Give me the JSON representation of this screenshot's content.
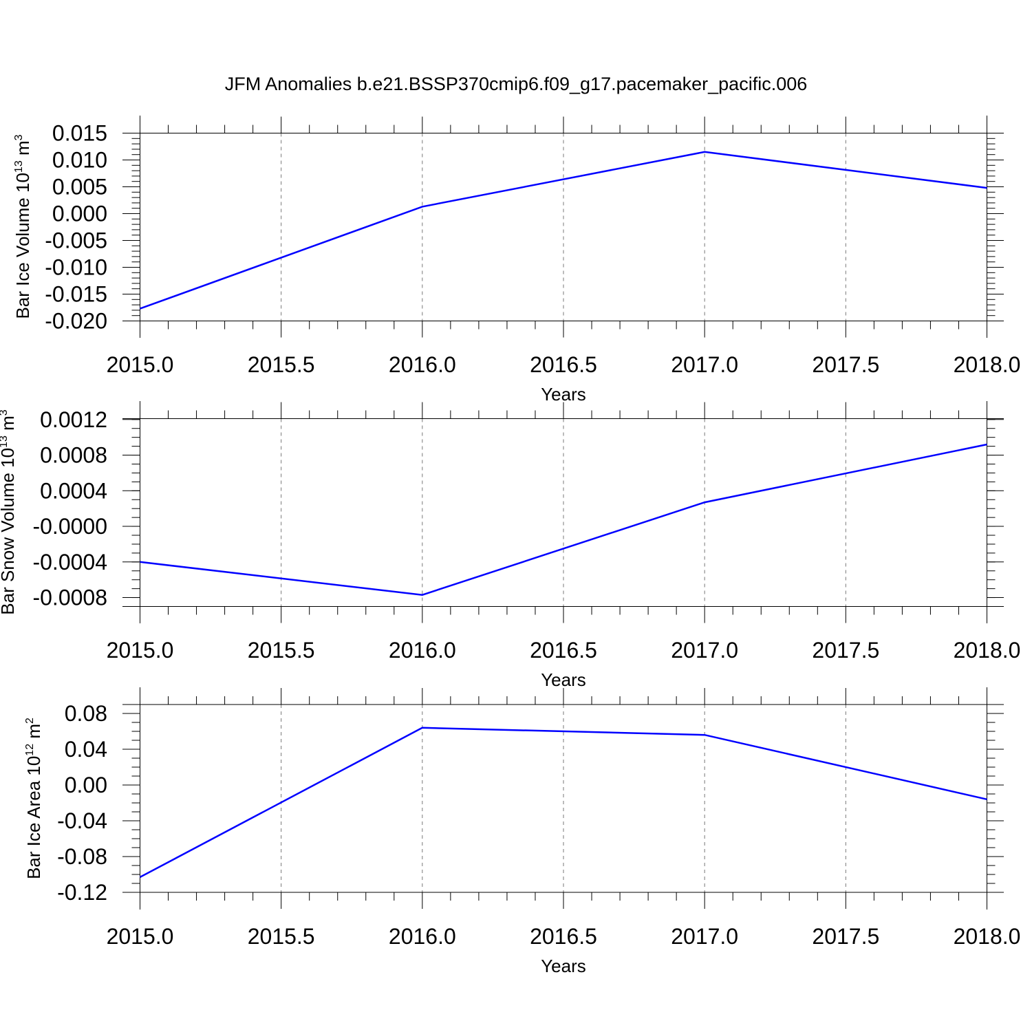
{
  "title": "JFM Anomalies b.e21.BSSP370cmip6.f09_g17.pacemaker_pacific.006",
  "colors": {
    "series": "#0000ff",
    "grid": "#777777",
    "frame": "#000000"
  },
  "chart_data": [
    {
      "type": "line",
      "xlabel": "Years",
      "ylabel": "Bar Ice Volume 10",
      "ylabel_sup": "13",
      "ylabel_unit": " m",
      "ylabel_unit_sup": "3",
      "xlim": [
        2015.0,
        2018.0
      ],
      "ylim": [
        -0.02,
        0.015
      ],
      "x_ticks": [
        "2015.0",
        "2015.5",
        "2016.0",
        "2016.5",
        "2017.0",
        "2017.5",
        "2018.0"
      ],
      "x_tick_values": [
        2015.0,
        2015.5,
        2016.0,
        2016.5,
        2017.0,
        2017.5,
        2018.0
      ],
      "y_ticks": [
        "0.015",
        "0.010",
        "0.005",
        "0.000",
        "-0.005",
        "-0.010",
        "-0.015",
        "-0.020"
      ],
      "y_tick_values": [
        0.015,
        0.01,
        0.005,
        0.0,
        -0.005,
        -0.01,
        -0.015,
        -0.02
      ],
      "y_minor_step": 0.001,
      "vertical_grid": true,
      "x": [
        2015,
        2016,
        2017,
        2018
      ],
      "y": [
        -0.0177,
        0.0013,
        0.0115,
        0.0048
      ]
    },
    {
      "type": "line",
      "xlabel": "Years",
      "ylabel": "Bar Snow Volume 10",
      "ylabel_sup": "13",
      "ylabel_unit": " m",
      "ylabel_unit_sup": "3",
      "xlim": [
        2015.0,
        2018.0
      ],
      "ylim": [
        -0.0009,
        0.00121
      ],
      "x_ticks": [
        "2015.0",
        "2015.5",
        "2016.0",
        "2016.5",
        "2017.0",
        "2017.5",
        "2018.0"
      ],
      "x_tick_values": [
        2015.0,
        2015.5,
        2016.0,
        2016.5,
        2017.0,
        2017.5,
        2018.0
      ],
      "y_ticks": [
        "0.0012",
        "0.0008",
        "0.0004",
        "-0.0000",
        "-0.0004",
        "-0.0008"
      ],
      "y_tick_values": [
        0.0012,
        0.0008,
        0.0004,
        0.0,
        -0.0004,
        -0.0008
      ],
      "y_minor_step": 0.0001,
      "vertical_grid": true,
      "x": [
        2015,
        2016,
        2017,
        2018
      ],
      "y": [
        -0.0004,
        -0.00077,
        0.00027,
        0.00092
      ]
    },
    {
      "type": "line",
      "xlabel": "Years",
      "ylabel": "Bar Ice Area 10",
      "ylabel_sup": "12",
      "ylabel_unit": " m",
      "ylabel_unit_sup": "2",
      "xlim": [
        2015.0,
        2018.0
      ],
      "ylim": [
        -0.12,
        0.09
      ],
      "x_ticks": [
        "2015.0",
        "2015.5",
        "2016.0",
        "2016.5",
        "2017.0",
        "2017.5",
        "2018.0"
      ],
      "x_tick_values": [
        2015.0,
        2015.5,
        2016.0,
        2016.5,
        2017.0,
        2017.5,
        2018.0
      ],
      "y_ticks": [
        "0.08",
        "0.04",
        "0.00",
        "-0.04",
        "-0.08",
        "-0.12"
      ],
      "y_tick_values": [
        0.08,
        0.04,
        0.0,
        -0.04,
        -0.08,
        -0.12
      ],
      "y_minor_step": 0.01,
      "vertical_grid": true,
      "x": [
        2015,
        2016,
        2017,
        2018
      ],
      "y": [
        -0.103,
        0.064,
        0.056,
        -0.016
      ]
    }
  ]
}
